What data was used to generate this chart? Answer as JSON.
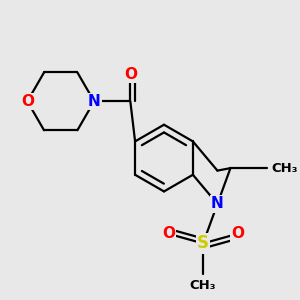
{
  "bg_color": "#e8e8e8",
  "bond_color": "#000000",
  "bond_width": 1.6,
  "atom_colors": {
    "N": "#0000ff",
    "O": "#ff0000",
    "S": "#cccc00",
    "C": "#000000"
  },
  "font_size_atom": 11,
  "font_size_small": 9.5
}
